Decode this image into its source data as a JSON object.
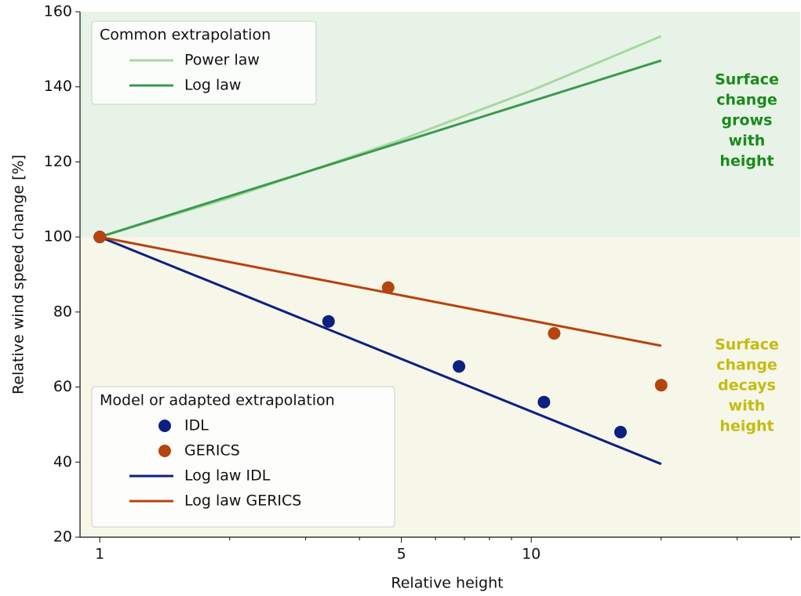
{
  "chart_data": {
    "type": "line",
    "xlabel": "Relative height",
    "ylabel": "Relative wind speed change [%]",
    "xscale": "log",
    "xlim": [
      0.9,
      42
    ],
    "ylim": [
      20,
      160
    ],
    "xticks": [
      1,
      5,
      10
    ],
    "xminorticks": [
      2,
      3,
      4,
      6,
      7,
      8,
      9,
      20,
      30,
      40
    ],
    "yticks": [
      20,
      40,
      60,
      80,
      100,
      120,
      140,
      160
    ],
    "regions": [
      {
        "ymin": 100,
        "ymax": 160,
        "color": "#e8f3e8"
      },
      {
        "ymin": 20,
        "ymax": 100,
        "color": "#f6f6e9"
      }
    ],
    "legends": [
      {
        "title": "Common extrapolation",
        "corner": "upper left"
      },
      {
        "title": "Model or adapted extrapolation",
        "corner": "lower left"
      }
    ],
    "series": [
      {
        "name": "Power law",
        "kind": "line",
        "legend": 0,
        "color": "#a8d8a0",
        "x": [
          1,
          2,
          5,
          10,
          20
        ],
        "values": [
          100,
          110.4,
          125.9,
          139.0,
          153.5
        ]
      },
      {
        "name": "Log law",
        "kind": "line",
        "legend": 0,
        "color": "#3a9a50",
        "x": [
          1,
          20
        ],
        "values": [
          100,
          147
        ]
      },
      {
        "name": "IDL",
        "kind": "scatter",
        "legend": 1,
        "color": "#0d2080",
        "x": [
          1,
          3.39,
          6.8,
          10.7,
          16.1
        ],
        "values": [
          100,
          77.5,
          65.5,
          56,
          48
        ]
      },
      {
        "name": "GERICS",
        "kind": "scatter",
        "legend": 1,
        "color": "#b5440f",
        "x": [
          1,
          4.66,
          11.3,
          20
        ],
        "values": [
          100,
          86.5,
          74.3,
          60.5
        ]
      },
      {
        "name": "Log law IDL",
        "kind": "line",
        "legend": 1,
        "color": "#0d2080",
        "x": [
          1,
          20
        ],
        "values": [
          100,
          39.5
        ]
      },
      {
        "name": "Log law GERICS",
        "kind": "line",
        "legend": 1,
        "color": "#b5440f",
        "x": [
          1,
          20
        ],
        "values": [
          100,
          71
        ]
      }
    ],
    "annotations": [
      {
        "lines": [
          "Surface",
          "change",
          "grows",
          "with",
          "height"
        ],
        "color": "#1a8a1a"
      },
      {
        "lines": [
          "Surface",
          "change",
          "decays",
          "with",
          "height"
        ],
        "color": "#c4bc10"
      }
    ]
  }
}
